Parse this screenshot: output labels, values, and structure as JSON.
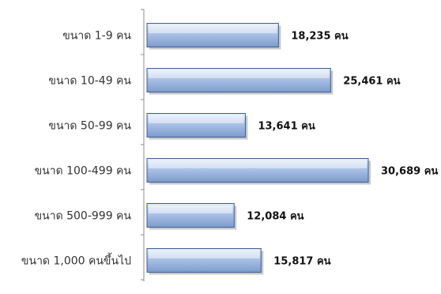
{
  "chart_data": {
    "type": "bar",
    "orientation": "horizontal",
    "categories": [
      "ขนาด 1-9 คน",
      "ขนาด 10-49 คน",
      "ขนาด 50-99 คน",
      "ขนาด 100-499 คน",
      "ขนาด 500-999 คน",
      "ขนาด 1,000 คนขึ้นไป"
    ],
    "values": [
      18235,
      25461,
      13641,
      30689,
      12084,
      15817
    ],
    "value_labels": [
      "18,235 คน",
      "25,461 คน",
      "13,641 คน",
      "30,689 คน",
      "12,084  คน",
      "15,817 คน"
    ],
    "title": "",
    "xlabel": "",
    "ylabel": "",
    "xlim": [
      0,
      30689
    ],
    "grid": false,
    "legend": "none",
    "colors": {
      "bar_light": "#e4ecf8",
      "bar_mid": "#a9c1e6",
      "bar_dark": "#7d9ccc",
      "bar_stroke": "#3e5f93",
      "shadow": "#9a9a9a",
      "axis": "#8c8c8c"
    }
  }
}
